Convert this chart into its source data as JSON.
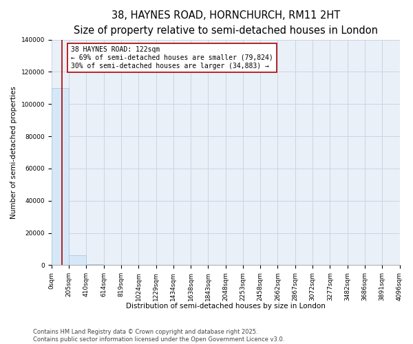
{
  "title": "38, HAYNES ROAD, HORNCHURCH, RM11 2HT",
  "subtitle": "Size of property relative to semi-detached houses in London",
  "xlabel": "Distribution of semi-detached houses by size in London",
  "ylabel": "Number of semi-detached properties",
  "annotation_line1": "38 HAYNES ROAD: 122sqm",
  "annotation_line2": "← 69% of semi-detached houses are smaller (79,824)",
  "annotation_line3": "30% of semi-detached houses are larger (34,883) →",
  "property_size": 122,
  "bar_edges": [
    0,
    205,
    410,
    614,
    819,
    1024,
    1229,
    1434,
    1638,
    1843,
    2048,
    2253,
    2458,
    2662,
    2867,
    3072,
    3277,
    3482,
    3686,
    3891,
    4096
  ],
  "bar_heights": [
    110000,
    6000,
    400,
    100,
    40,
    20,
    12,
    8,
    6,
    4,
    3,
    2,
    2,
    1,
    1,
    1,
    1,
    1,
    0,
    0
  ],
  "bar_color": "#d6e8f7",
  "bar_edge_color": "#a8c8e8",
  "line_color": "#aa0000",
  "ylim": [
    0,
    140000
  ],
  "yticks": [
    0,
    20000,
    40000,
    60000,
    80000,
    100000,
    120000,
    140000
  ],
  "grid_color": "#c8d4e4",
  "plot_bg_color": "#eaf0f8",
  "fig_bg_color": "#ffffff",
  "footer": "Contains HM Land Registry data © Crown copyright and database right 2025.\nContains public sector information licensed under the Open Government Licence v3.0.",
  "title_fontsize": 10.5,
  "subtitle_fontsize": 8.5,
  "axis_label_fontsize": 7.5,
  "tick_fontsize": 6.5,
  "annotation_fontsize": 7,
  "footer_fontsize": 6
}
